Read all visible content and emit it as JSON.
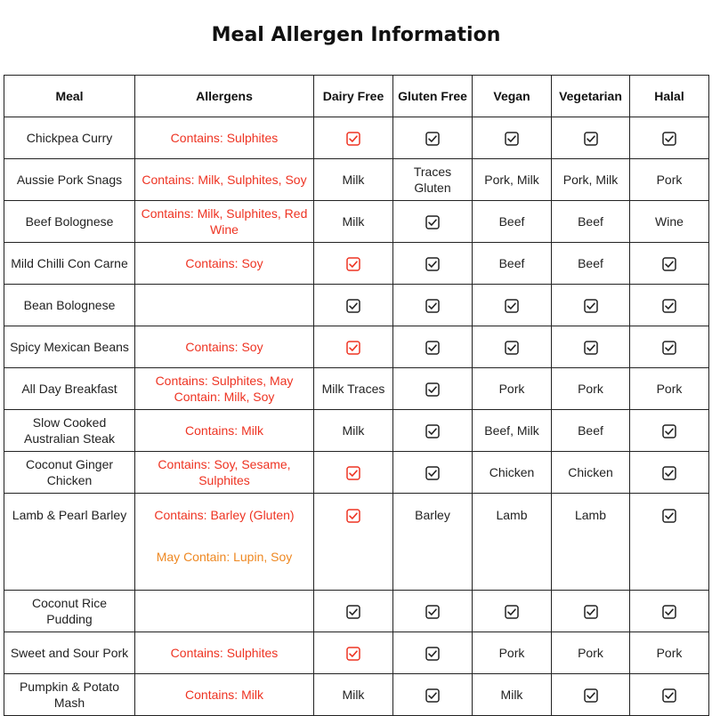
{
  "title": "Meal Allergen Information",
  "colors": {
    "allergen_red": "#ee3322",
    "may_contain_orange": "#ee8822",
    "check_black": "#222222",
    "check_red": "#ee3322"
  },
  "columns": [
    "Meal",
    "Allergens",
    "Dairy Free",
    "Gluten Free",
    "Vegan",
    "Vegetarian",
    "Halal"
  ],
  "rows": [
    {
      "meal": "Chickpea Curry",
      "allergens": "Contains: Sulphites",
      "dairy_free": "check-red",
      "gluten_free": "check",
      "vegan": "check",
      "vegetarian": "check",
      "halal": "check"
    },
    {
      "meal": "Aussie Pork Snags",
      "allergens": "Contains: Milk, Sulphites, Soy",
      "dairy_free": "Milk",
      "gluten_free": "Traces Gluten",
      "vegan": "Pork, Milk",
      "vegetarian": "Pork, Milk",
      "halal": "Pork"
    },
    {
      "meal": "Beef Bolognese",
      "allergens": "Contains: Milk, Sulphites, Red Wine",
      "dairy_free": "Milk",
      "gluten_free": "check",
      "vegan": "Beef",
      "vegetarian": "Beef",
      "halal": "Wine"
    },
    {
      "meal": "Mild Chilli Con Carne",
      "allergens": "Contains: Soy",
      "dairy_free": "check-red",
      "gluten_free": "check",
      "vegan": "Beef",
      "vegetarian": "Beef",
      "halal": "check"
    },
    {
      "meal": "Bean Bolognese",
      "allergens": "",
      "dairy_free": "check",
      "gluten_free": "check",
      "vegan": "check",
      "vegetarian": "check",
      "halal": "check"
    },
    {
      "meal": "Spicy Mexican Beans",
      "allergens": "Contains: Soy",
      "dairy_free": "check-red",
      "gluten_free": "check",
      "vegan": "check",
      "vegetarian": "check",
      "halal": "check"
    },
    {
      "meal": "All Day Breakfast",
      "allergens": "Contains: Sulphites, May Contain: Milk, Soy",
      "dairy_free": "Milk Traces",
      "gluten_free": "check",
      "vegan": "Pork",
      "vegetarian": "Pork",
      "halal": "Pork"
    },
    {
      "meal": "Slow Cooked Australian Steak",
      "allergens": "Contains: Milk",
      "dairy_free": "Milk",
      "gluten_free": "check",
      "vegan": "Beef, Milk",
      "vegetarian": "Beef",
      "halal": "check"
    },
    {
      "meal": "Coconut Ginger Chicken",
      "allergens": "Contains: Soy, Sesame, Sulphites",
      "dairy_free": "check-red",
      "gluten_free": "check",
      "vegan": "Chicken",
      "vegetarian": "Chicken",
      "halal": "check"
    },
    {
      "meal": "Lamb & Pearl Barley",
      "allergens": "Contains: Barley (Gluten)",
      "may_contain": "May Contain: Lupin, Soy",
      "dairy_free": "check-red",
      "gluten_free": "Barley",
      "vegan": "Lamb",
      "vegetarian": "Lamb",
      "halal": "check"
    },
    {
      "meal": "Coconut Rice Pudding",
      "allergens": "",
      "dairy_free": "check",
      "gluten_free": "check",
      "vegan": "check",
      "vegetarian": "check",
      "halal": "check"
    },
    {
      "meal": "Sweet and Sour Pork",
      "allergens": "Contains: Sulphites",
      "dairy_free": "check-red",
      "gluten_free": "check",
      "vegan": "Pork",
      "vegetarian": "Pork",
      "halal": "Pork"
    },
    {
      "meal": "Pumpkin & Potato Mash",
      "allergens": "Contains: Milk",
      "dairy_free": "Milk",
      "gluten_free": "check",
      "vegan": "Milk",
      "vegetarian": "check",
      "halal": "check"
    }
  ]
}
